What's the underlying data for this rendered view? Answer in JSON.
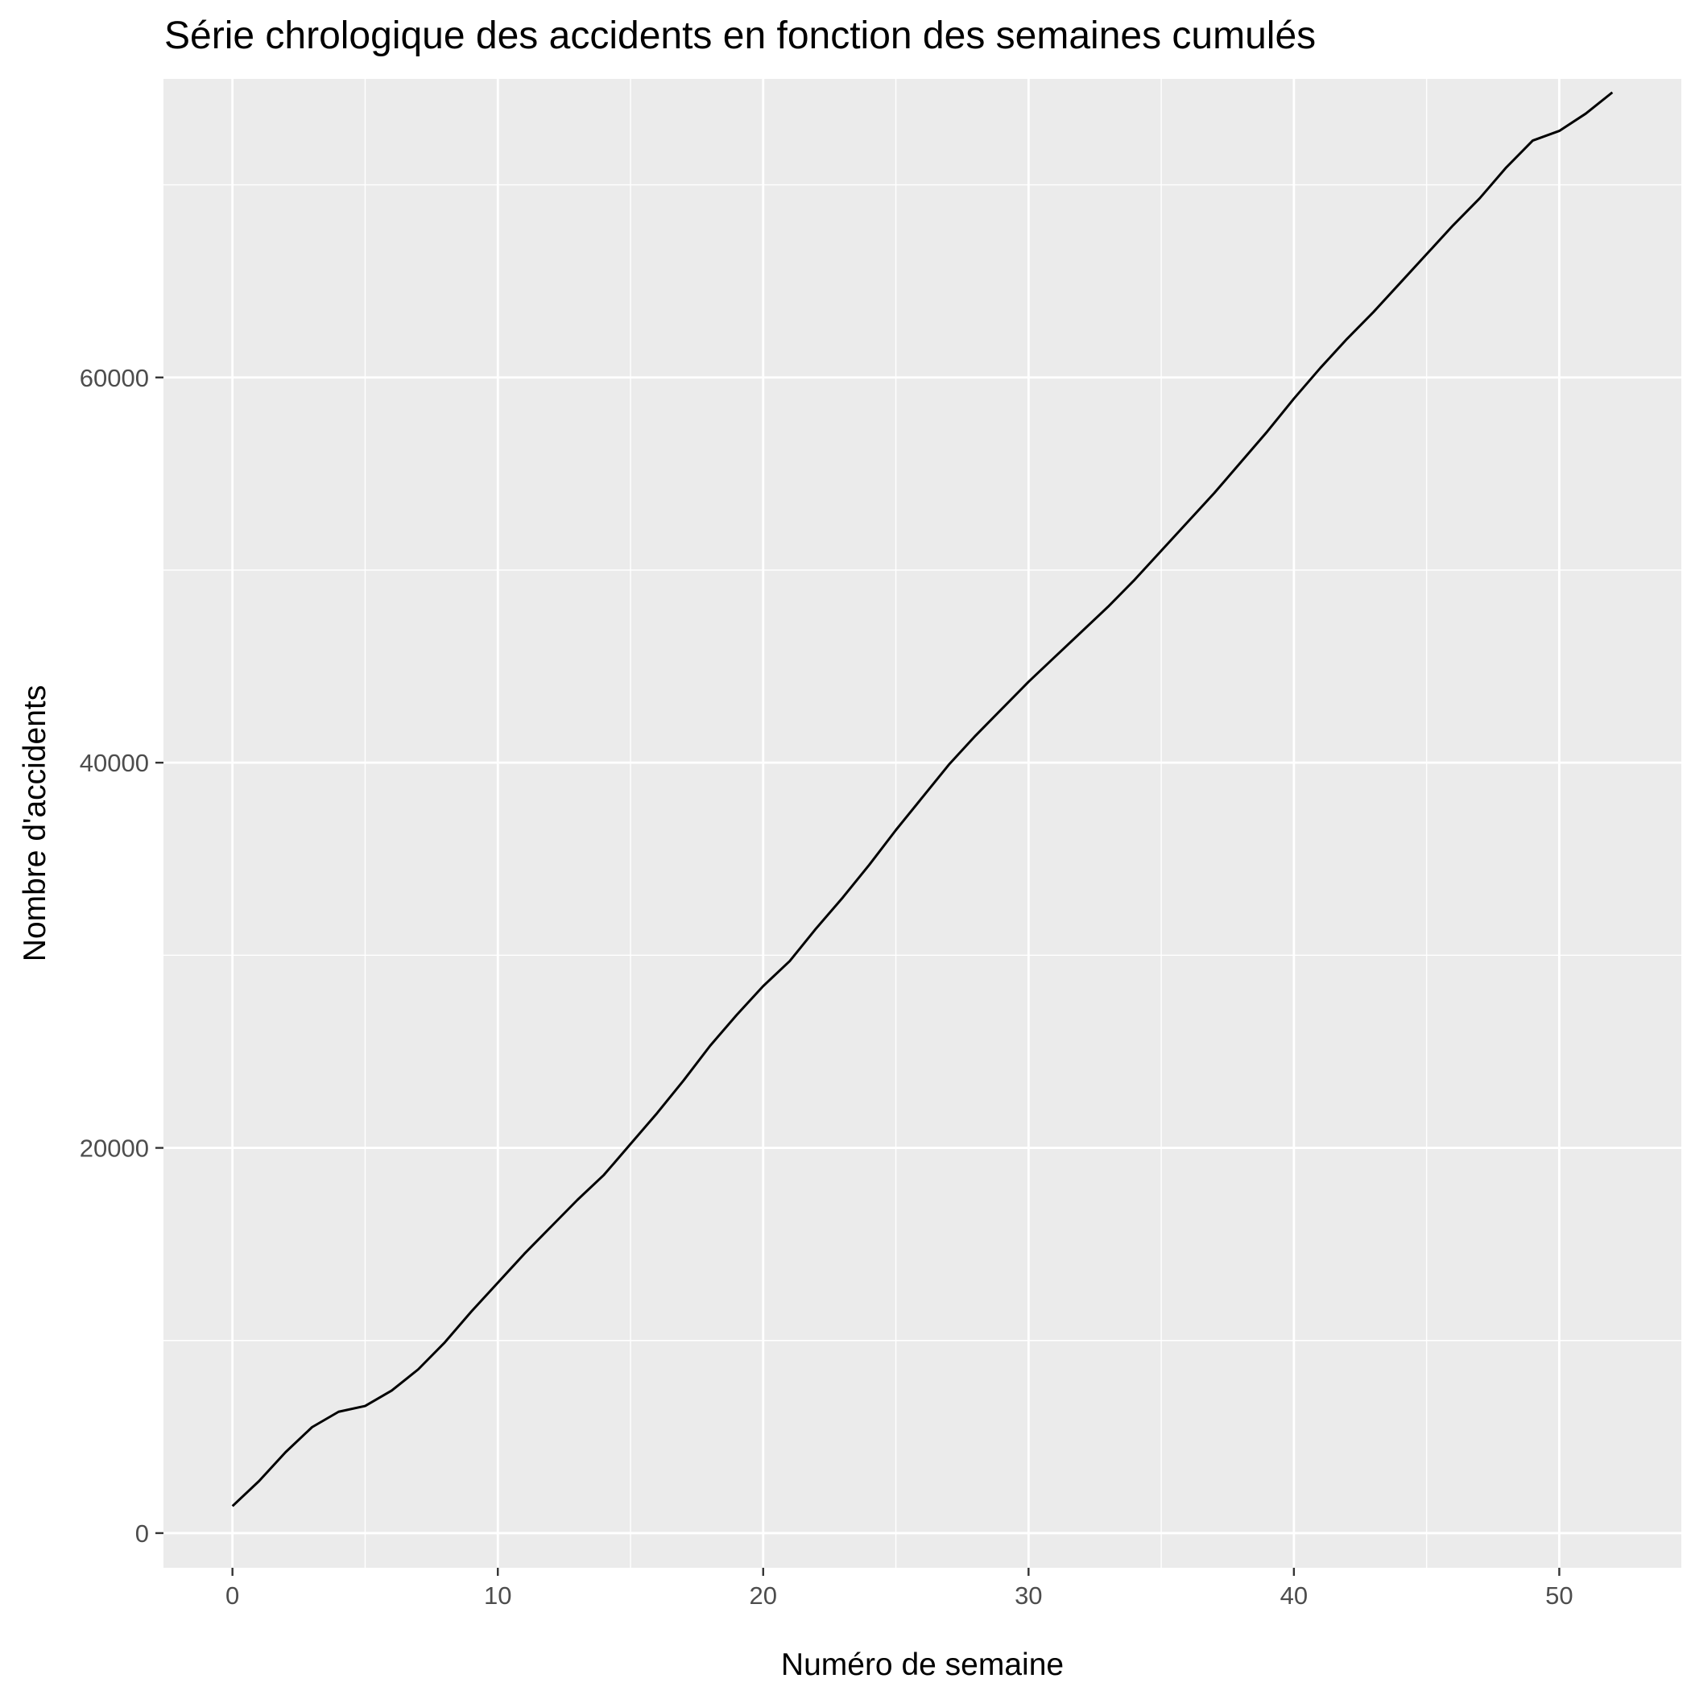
{
  "chart_data": {
    "type": "line",
    "title": "Série chrologique des accidents en fonction des semaines cumulés",
    "xlabel": "Numéro de semaine",
    "ylabel": "Nombre d'accidents",
    "xlim": [
      -2.6,
      54.6
    ],
    "ylim": [
      -1800,
      75500
    ],
    "x_ticks": [
      0,
      10,
      20,
      30,
      40,
      50
    ],
    "x_tick_labels": [
      "0",
      "10",
      "20",
      "30",
      "40",
      "50"
    ],
    "y_ticks": [
      0,
      20000,
      40000,
      60000
    ],
    "y_tick_labels": [
      "0",
      "20000",
      "40000",
      "60000"
    ],
    "x_minor_ticks": [
      5,
      15,
      25,
      35,
      45
    ],
    "y_minor_ticks": [
      10000,
      30000,
      50000,
      70000
    ],
    "grid": true,
    "legend": "none",
    "colors": {
      "panel_background": "#EBEBEB",
      "grid_line": "#FFFFFF",
      "series_line": "#000000",
      "tick_label": "#4D4D4D",
      "tick_mark": "#333333"
    },
    "series": [
      {
        "x": [
          0,
          1,
          2,
          3,
          4,
          5,
          6,
          7,
          8,
          9,
          10,
          11,
          12,
          13,
          14,
          15,
          16,
          17,
          18,
          19,
          20,
          21,
          22,
          23,
          24,
          25,
          26,
          27,
          28,
          29,
          30,
          31,
          32,
          33,
          34,
          35,
          36,
          37,
          38,
          39,
          40,
          41,
          42,
          43,
          44,
          45,
          46,
          47,
          48,
          49,
          50,
          51,
          52
        ],
        "values": [
          1400,
          2700,
          4200,
          5500,
          6300,
          6600,
          7400,
          8500,
          9900,
          11500,
          13000,
          14500,
          15900,
          17300,
          18600,
          20200,
          21800,
          23500,
          25300,
          26900,
          28400,
          29700,
          31400,
          33000,
          34700,
          36500,
          38200,
          39900,
          41400,
          42800,
          44200,
          45500,
          46800,
          48100,
          49500,
          51000,
          52500,
          54000,
          55600,
          57200,
          58900,
          60500,
          62000,
          63400,
          64900,
          66400,
          67900,
          69300,
          70900,
          72300,
          72800,
          73700,
          74800
        ]
      }
    ]
  }
}
